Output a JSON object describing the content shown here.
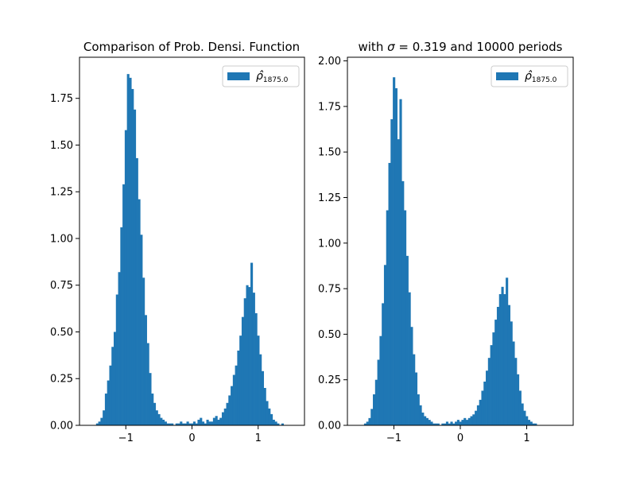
{
  "figure": {
    "title_left": "Comparison of Prob. Densi. Function",
    "title_right": "with σ = 0.319 and 10000 periods"
  },
  "colors": {
    "bar": "#1f77b4",
    "axis": "#000000",
    "legend_border": "#cccccc"
  },
  "chart_data": [
    {
      "type": "bar",
      "title": "Comparison of Prob. Densi. Function",
      "xlabel": "",
      "ylabel": "",
      "xlim": [
        -1.7,
        1.7
      ],
      "ylim": [
        0,
        1.97
      ],
      "xticks": [
        -1,
        0,
        1
      ],
      "xtick_labels": [
        "−1",
        "0",
        "1"
      ],
      "yticks": [
        0,
        0.25,
        0.5,
        0.75,
        1.0,
        1.25,
        1.5,
        1.75
      ],
      "ytick_labels": [
        "0.00",
        "0.25",
        "0.50",
        "0.75",
        "1.00",
        "1.25",
        "1.50",
        "1.75"
      ],
      "bin_range": [
        -1.45,
        1.45
      ],
      "legend": {
        "label": "ρ̂",
        "subscript": "1875.0",
        "placement": "upper right"
      },
      "values": [
        0.01,
        0.02,
        0.04,
        0.08,
        0.17,
        0.24,
        0.32,
        0.42,
        0.5,
        0.7,
        0.82,
        1.06,
        1.29,
        1.58,
        1.88,
        1.86,
        1.8,
        1.69,
        1.43,
        1.21,
        1.02,
        0.79,
        0.59,
        0.44,
        0.28,
        0.17,
        0.12,
        0.08,
        0.06,
        0.04,
        0.03,
        0.02,
        0.01,
        0.01,
        0.01,
        0.0,
        0.01,
        0.01,
        0.02,
        0.01,
        0.01,
        0.02,
        0.01,
        0.01,
        0.02,
        0.01,
        0.03,
        0.04,
        0.02,
        0.01,
        0.03,
        0.02,
        0.02,
        0.04,
        0.05,
        0.03,
        0.04,
        0.07,
        0.09,
        0.12,
        0.16,
        0.21,
        0.27,
        0.32,
        0.4,
        0.48,
        0.58,
        0.68,
        0.75,
        0.74,
        0.87,
        0.71,
        0.6,
        0.48,
        0.38,
        0.29,
        0.2,
        0.13,
        0.09,
        0.06,
        0.03,
        0.02,
        0.01,
        0.0,
        0.01,
        0.0,
        0.0
      ]
    },
    {
      "type": "bar",
      "title": "with σ = 0.319 and 10000 periods",
      "xlabel": "",
      "ylabel": "",
      "xlim": [
        -1.7,
        1.7
      ],
      "ylim": [
        0,
        2.02
      ],
      "xticks": [
        -1,
        0,
        1
      ],
      "xtick_labels": [
        "−1",
        "0",
        "1"
      ],
      "yticks": [
        0,
        0.25,
        0.5,
        0.75,
        1.0,
        1.25,
        1.5,
        1.75,
        2.0
      ],
      "ytick_labels": [
        "0.00",
        "0.25",
        "0.50",
        "0.75",
        "1.00",
        "1.25",
        "1.50",
        "1.75",
        "2.00"
      ],
      "bin_range": [
        -1.45,
        1.45
      ],
      "legend": {
        "label": "ρ̂",
        "subscript": "1875.0",
        "placement": "upper right"
      },
      "values": [
        0.01,
        0.02,
        0.04,
        0.09,
        0.17,
        0.25,
        0.36,
        0.49,
        0.67,
        0.88,
        1.18,
        1.44,
        1.68,
        1.91,
        1.85,
        1.57,
        1.79,
        1.34,
        1.18,
        0.93,
        0.73,
        0.54,
        0.39,
        0.29,
        0.17,
        0.11,
        0.07,
        0.05,
        0.04,
        0.03,
        0.02,
        0.01,
        0.01,
        0.01,
        0.0,
        0.01,
        0.01,
        0.02,
        0.01,
        0.02,
        0.01,
        0.02,
        0.03,
        0.02,
        0.03,
        0.04,
        0.03,
        0.04,
        0.05,
        0.06,
        0.08,
        0.11,
        0.14,
        0.19,
        0.24,
        0.3,
        0.37,
        0.44,
        0.51,
        0.58,
        0.65,
        0.72,
        0.76,
        0.72,
        0.81,
        0.66,
        0.57,
        0.46,
        0.37,
        0.28,
        0.19,
        0.12,
        0.08,
        0.05,
        0.03,
        0.02,
        0.01,
        0.01,
        0.0,
        0.0,
        0.0,
        0.0,
        0.0,
        0.0,
        0.0,
        0.0,
        0.0
      ]
    }
  ]
}
